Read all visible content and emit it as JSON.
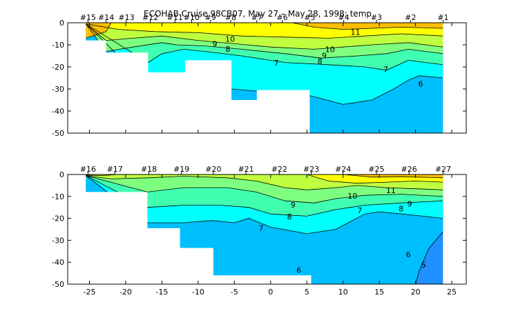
{
  "title": "ECOHAB Cruise 98CB07, May 27 – May 28, 1998: temp",
  "chart_data": [
    {
      "type": "contour",
      "title": "ECOHAB Cruise 98CB07, May 27 – May 28, 1998: temp",
      "xlim": [
        -28,
        27
      ],
      "ylim": [
        -50,
        0
      ],
      "yticks": [
        0,
        -10,
        -20,
        -30,
        -40,
        -50
      ],
      "xticks": [
        -25,
        -20,
        -15,
        -10,
        -5,
        0,
        5,
        10,
        15,
        20,
        25
      ],
      "show_xtick_labels": false,
      "stations": [
        {
          "label": "#15",
          "x": -25.2
        },
        {
          "label": "#14",
          "x": -22.7
        },
        {
          "label": "#13",
          "x": -19.9
        },
        {
          "label": "#12",
          "x": -16.6
        },
        {
          "label": "#11",
          "x": -13.2
        },
        {
          "label": "#10",
          "x": -10.9
        },
        {
          "label": "#9",
          "x": -8.3
        },
        {
          "label": "#8",
          "x": -5.5
        },
        {
          "label": "#7",
          "x": -1.9
        },
        {
          "label": "#6",
          "x": 1.6
        },
        {
          "label": "#5",
          "x": 5.4
        },
        {
          "label": "#4",
          "x": 10.1
        },
        {
          "label": "#3",
          "x": 14.6
        },
        {
          "label": "#2",
          "x": 19.3
        },
        {
          "label": "#1",
          "x": 23.8
        }
      ],
      "bottom_profile": [
        [
          -25.5,
          -8
        ],
        [
          -22.7,
          -8
        ],
        [
          -22.7,
          -13.5
        ],
        [
          -16.9,
          -13.5
        ],
        [
          -16.9,
          -22.5
        ],
        [
          -11.8,
          -22.5
        ],
        [
          -11.8,
          -17
        ],
        [
          -5.4,
          -17
        ],
        [
          -5.4,
          -35
        ],
        [
          -1.9,
          -35
        ],
        [
          -1.9,
          -30.5
        ],
        [
          5.4,
          -30.5
        ],
        [
          5.4,
          -50
        ],
        [
          23.8,
          -50
        ],
        [
          23.8,
          0
        ],
        [
          -25.5,
          0
        ]
      ],
      "contour_labels": [
        {
          "text": "11",
          "x": 11.7,
          "y": -4.2
        },
        {
          "text": "10",
          "x": -5.6,
          "y": -7.3
        },
        {
          "text": "10",
          "x": 8.2,
          "y": -12.0
        },
        {
          "text": "9",
          "x": -7.7,
          "y": -9.6
        },
        {
          "text": "9",
          "x": 7.4,
          "y": -14.9
        },
        {
          "text": "8",
          "x": -5.9,
          "y": -11.8
        },
        {
          "text": "8",
          "x": 6.8,
          "y": -17.4
        },
        {
          "text": "7",
          "x": 0.8,
          "y": -18.2
        },
        {
          "text": "7",
          "x": 15.9,
          "y": -21.1
        },
        {
          "text": "6",
          "x": 20.7,
          "y": -27.7
        }
      ]
    },
    {
      "type": "contour",
      "xlim": [
        -28,
        27
      ],
      "ylim": [
        -50,
        0
      ],
      "yticks": [
        0,
        -10,
        -20,
        -30,
        -40,
        -50
      ],
      "xticks": [
        -25,
        -20,
        -15,
        -10,
        -5,
        0,
        5,
        10,
        15,
        20,
        25
      ],
      "xtick_labels": [
        "-25",
        "-20",
        "-15",
        "-10",
        "-5",
        "0",
        "5",
        "10",
        "15",
        "20",
        "25"
      ],
      "stations": [
        {
          "label": "#16",
          "x": -25.2
        },
        {
          "label": "#17",
          "x": -21.5
        },
        {
          "label": "#18",
          "x": -16.8
        },
        {
          "label": "#19",
          "x": -12.3
        },
        {
          "label": "#20",
          "x": -7.9
        },
        {
          "label": "#21",
          "x": -3.4
        },
        {
          "label": "#22",
          "x": 1.2
        },
        {
          "label": "#23",
          "x": 5.6
        },
        {
          "label": "#24",
          "x": 10.0
        },
        {
          "label": "#25",
          "x": 14.6
        },
        {
          "label": "#26",
          "x": 19.1
        },
        {
          "label": "#27",
          "x": 23.8
        }
      ],
      "bottom_profile": [
        [
          -25.5,
          -8
        ],
        [
          -21.5,
          -8
        ],
        [
          -21.5,
          -8
        ],
        [
          -17.0,
          -8
        ],
        [
          -17.0,
          -24.5
        ],
        [
          -12.5,
          -24.5
        ],
        [
          -12.5,
          -33.5
        ],
        [
          -7.9,
          -33.5
        ],
        [
          -7.9,
          -46
        ],
        [
          5.6,
          -46
        ],
        [
          5.6,
          -50
        ],
        [
          23.8,
          -50
        ],
        [
          23.8,
          0
        ],
        [
          -25.5,
          0
        ]
      ],
      "contour_labels": [
        {
          "text": "11",
          "x": 16.6,
          "y": -7.2
        },
        {
          "text": "10",
          "x": 11.3,
          "y": -9.7
        },
        {
          "text": "9",
          "x": 3.1,
          "y": -13.9
        },
        {
          "text": "9",
          "x": 19.2,
          "y": -13.3
        },
        {
          "text": "8",
          "x": 2.6,
          "y": -19.2
        },
        {
          "text": "8",
          "x": 18.0,
          "y": -15.5
        },
        {
          "text": "7",
          "x": -1.3,
          "y": -24.4
        },
        {
          "text": "7",
          "x": 12.3,
          "y": -16.3
        },
        {
          "text": "6",
          "x": 3.9,
          "y": -43.6
        },
        {
          "text": "6",
          "x": 19.0,
          "y": -36.5
        },
        {
          "text": "5",
          "x": 21.1,
          "y": -73.0
        }
      ]
    }
  ],
  "colors": {
    "t5": "#1e90ff",
    "t6": "#00bfff",
    "t7": "#00ffff",
    "t8": "#40ffb0",
    "t9": "#7fff7f",
    "t10": "#bfff3f",
    "t11": "#ffff00",
    "t12": "#ffbf00"
  }
}
